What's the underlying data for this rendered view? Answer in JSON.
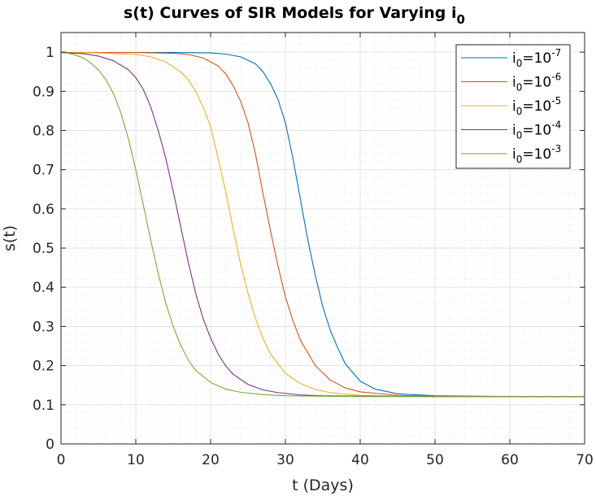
{
  "chart_data": {
    "type": "line",
    "title": "s(t) Curves of SIR Models for Varying i",
    "title_subscript": "0",
    "xlabel": "t (Days)",
    "ylabel": "s(t)",
    "xlim": [
      0,
      70
    ],
    "ylim": [
      0,
      1.05
    ],
    "xticks": [
      0,
      10,
      20,
      30,
      40,
      50,
      60,
      70
    ],
    "yticks": [
      0,
      0.1,
      0.2,
      0.3,
      0.4,
      0.5,
      0.6,
      0.7,
      0.8,
      0.9,
      1
    ],
    "xtick_labels": [
      "0",
      "10",
      "20",
      "30",
      "40",
      "50",
      "60",
      "70"
    ],
    "ytick_labels": [
      "0",
      "0.1",
      "0.2",
      "0.3",
      "0.4",
      "0.5",
      "0.6",
      "0.7",
      "0.8",
      "0.9",
      "1"
    ],
    "grid": true,
    "minor_grid": true,
    "legend_position": "top-right",
    "series": [
      {
        "label_base": "i",
        "label_sub": "0",
        "label_mid": "=10",
        "label_exp": "-7",
        "color": "#0072BD",
        "x": [
          0,
          5,
          10,
          15,
          20,
          22,
          24,
          26,
          27,
          28,
          29,
          30,
          31,
          32,
          33,
          34,
          35,
          36,
          37,
          38,
          40,
          42,
          45,
          50,
          55,
          60,
          70
        ],
        "y": [
          0.999,
          0.999,
          0.999,
          0.999,
          0.998,
          0.995,
          0.988,
          0.97,
          0.95,
          0.92,
          0.88,
          0.82,
          0.73,
          0.625,
          0.52,
          0.43,
          0.35,
          0.29,
          0.245,
          0.205,
          0.16,
          0.14,
          0.128,
          0.123,
          0.122,
          0.121,
          0.121
        ]
      },
      {
        "label_base": "i",
        "label_sub": "0",
        "label_mid": "=10",
        "label_exp": "-6",
        "color": "#D95319",
        "x": [
          0,
          5,
          10,
          15,
          17,
          19,
          21,
          22,
          23,
          24,
          25,
          26,
          27,
          28,
          29,
          30,
          31,
          32,
          34,
          36,
          38,
          40,
          45,
          50,
          60,
          70
        ],
        "y": [
          0.999,
          0.999,
          0.999,
          0.997,
          0.994,
          0.985,
          0.965,
          0.945,
          0.915,
          0.875,
          0.82,
          0.74,
          0.64,
          0.545,
          0.455,
          0.375,
          0.315,
          0.265,
          0.2,
          0.163,
          0.143,
          0.133,
          0.124,
          0.122,
          0.121,
          0.121
        ]
      },
      {
        "label_base": "i",
        "label_sub": "0",
        "label_mid": "=10",
        "label_exp": "-5",
        "color": "#EDB120",
        "x": [
          0,
          5,
          10,
          12,
          14,
          16,
          17,
          18,
          19,
          20,
          21,
          22,
          23,
          24,
          25,
          26,
          27,
          28,
          30,
          32,
          34,
          36,
          40,
          45,
          50,
          60,
          70
        ],
        "y": [
          0.999,
          0.998,
          0.994,
          0.988,
          0.975,
          0.95,
          0.93,
          0.9,
          0.86,
          0.81,
          0.73,
          0.645,
          0.55,
          0.46,
          0.385,
          0.32,
          0.27,
          0.23,
          0.18,
          0.154,
          0.139,
          0.131,
          0.124,
          0.122,
          0.121,
          0.121,
          0.121
        ]
      },
      {
        "label_base": "i",
        "label_sub": "0",
        "label_mid": "=10",
        "label_exp": "-4",
        "color": "#7E2F8E",
        "x": [
          0,
          3,
          5,
          7,
          9,
          10,
          11,
          12,
          13,
          14,
          15,
          16,
          17,
          18,
          19,
          20,
          21,
          22,
          23,
          25,
          27,
          29,
          32,
          35,
          40,
          50,
          60,
          70
        ],
        "y": [
          0.999,
          0.996,
          0.99,
          0.978,
          0.955,
          0.935,
          0.905,
          0.86,
          0.8,
          0.73,
          0.645,
          0.555,
          0.465,
          0.385,
          0.32,
          0.27,
          0.23,
          0.2,
          0.178,
          0.152,
          0.138,
          0.131,
          0.125,
          0.123,
          0.122,
          0.121,
          0.121,
          0.121
        ]
      },
      {
        "label_base": "i",
        "label_sub": "0",
        "label_mid": "=10",
        "label_exp": "-3",
        "color": "#77AC30",
        "x": [
          0,
          1,
          2,
          3,
          4,
          5,
          6,
          7,
          8,
          9,
          10,
          11,
          12,
          13,
          14,
          15,
          16,
          17,
          18,
          20,
          22,
          24,
          27,
          30,
          35,
          40,
          50,
          60,
          70
        ],
        "y": [
          0.999,
          0.997,
          0.992,
          0.985,
          0.972,
          0.955,
          0.93,
          0.895,
          0.845,
          0.78,
          0.7,
          0.61,
          0.52,
          0.435,
          0.36,
          0.3,
          0.252,
          0.215,
          0.188,
          0.157,
          0.14,
          0.132,
          0.126,
          0.123,
          0.122,
          0.121,
          0.121,
          0.121,
          0.121
        ]
      }
    ]
  }
}
